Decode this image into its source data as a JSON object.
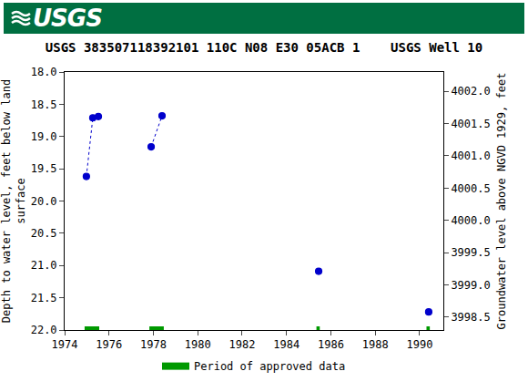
{
  "logo": "USGS",
  "chart_data": {
    "type": "scatter",
    "title": "USGS 383507118392101 110C N08 E30 05ACB 1    USGS Well 10",
    "xlabel": null,
    "ylabel": [
      "Depth to water level, feet below land",
      "surface"
    ],
    "y2label": "Groundwater level above NGVD 1929, feet",
    "series": [
      {
        "x": [
          1974.98,
          1975.27,
          1975.52
        ],
        "values": [
          19.62,
          18.71,
          18.69
        ],
        "color": "#0000cc",
        "marker": "open-circle",
        "line_style": "dotted"
      },
      {
        "x": [
          1977.9,
          1978.39
        ],
        "values": [
          19.16,
          18.68
        ],
        "color": "#0000cc",
        "marker": "open-circle",
        "line_style": "dotted"
      },
      {
        "x": [
          1985.45
        ],
        "values": [
          21.09
        ],
        "color": "#0000cc",
        "marker": "open-circle",
        "line_style": "dotted"
      },
      {
        "x": [
          1990.41
        ],
        "values": [
          21.72
        ],
        "color": "#0000cc",
        "marker": "open-circle",
        "line_style": "dotted"
      }
    ],
    "approved_periods": {
      "name": "Period of approved data",
      "color": "#009900",
      "ranges": [
        [
          1974.9,
          1975.56
        ],
        [
          1977.82,
          1978.47
        ],
        [
          1985.35,
          1985.5
        ],
        [
          1990.31,
          1990.46
        ]
      ]
    },
    "xlim": [
      1974,
      1991.07
    ],
    "xticks": [
      1974,
      1976,
      1978,
      1980,
      1982,
      1984,
      1986,
      1988,
      1990
    ],
    "ylim": [
      22,
      18
    ],
    "yticks": [
      {
        "value": 18,
        "label": "18.0"
      },
      18.5,
      {
        "value": 19,
        "label": "19.0"
      },
      19.5,
      {
        "value": 20,
        "label": "20.0"
      },
      20.5,
      {
        "value": 21,
        "label": "21.0"
      },
      21.5,
      {
        "value": 22,
        "label": "22.0"
      }
    ],
    "y2lim": [
      3998.3,
      4002.3
    ],
    "y2ticks": [
      3998.5,
      {
        "value": 3999,
        "label": "3999.0"
      },
      3999.5,
      {
        "value": 4000,
        "label": "4000.0"
      },
      4000.5,
      {
        "value": 4001,
        "label": "4001.0"
      },
      4001.5,
      {
        "value": 4002,
        "label": "4002.0"
      }
    ],
    "grid": false,
    "legend": "bottom"
  }
}
